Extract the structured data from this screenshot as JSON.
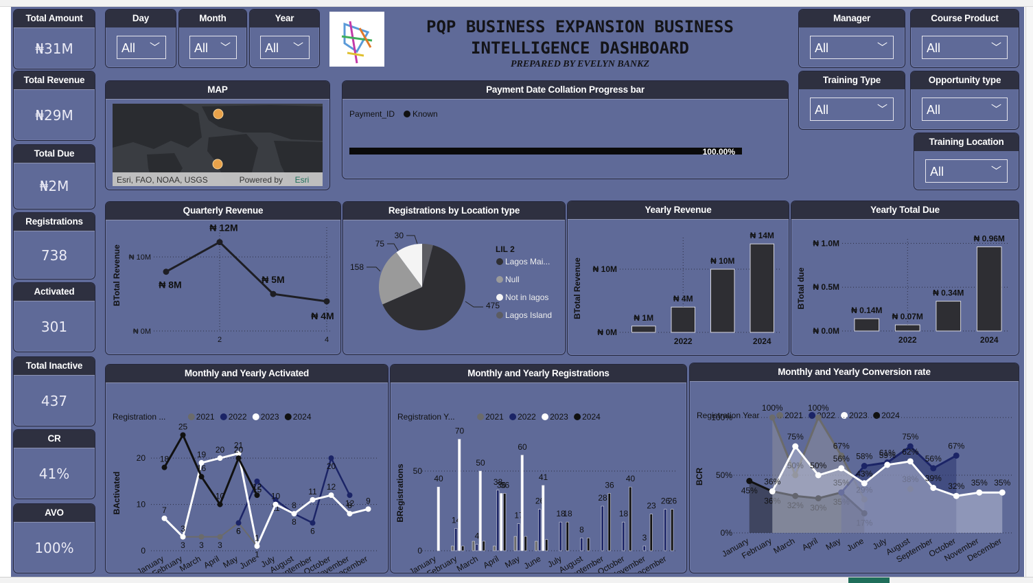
{
  "header": {
    "title_line1": "PQP BUSINESS EXPANSION BUSINESS",
    "title_line2": "INTELLIGENCE DASHBOARD",
    "subtitle": "PREPARED BY EVELYN BANKZ"
  },
  "kpis": [
    {
      "label": "Total Amount",
      "value": "₦31M"
    },
    {
      "label": "Total Revenue",
      "value": "₦29M"
    },
    {
      "label": "Total Due",
      "value": "₦2M"
    },
    {
      "label": "Registrations",
      "value": "738"
    },
    {
      "label": "Activated",
      "value": "301"
    },
    {
      "label": "Total Inactive",
      "value": "437"
    },
    {
      "label": "CR",
      "value": "41%"
    },
    {
      "label": "AVO",
      "value": "100%"
    }
  ],
  "slicers": {
    "day": {
      "label": "Day",
      "value": "All"
    },
    "month": {
      "label": "Month",
      "value": "All"
    },
    "year": {
      "label": "Year",
      "value": "All"
    },
    "manager": {
      "label": "Manager",
      "value": "All"
    },
    "course_product": {
      "label": "Course Product",
      "value": "All"
    },
    "training_type": {
      "label": "Training Type",
      "value": "All"
    },
    "opportunity_type": {
      "label": "Opportunity type",
      "value": "All"
    },
    "training_location": {
      "label": "Training Location",
      "value": "All"
    }
  },
  "map": {
    "title": "MAP",
    "attribution": "Esri, FAO, NOAA, USGS",
    "powered_by": "Powered by",
    "powered_brand": "Esri"
  },
  "progress": {
    "title": "Payment Date Collation Progress bar",
    "legend_field": "Payment_ID",
    "legend_item": "Known",
    "value_label": "100.00%",
    "fraction": 1.0
  },
  "colors": {
    "y2021": "#6b6b6b",
    "y2022": "#1b2466",
    "y2023": "#ffffff",
    "y2024": "#111111",
    "panel_bg": "#5f6a98",
    "header_bg": "#2e3040"
  },
  "charts": {
    "quarterly": {
      "title": "Quarterly Revenue",
      "ylabel": "BTotal Revenue",
      "yticks": [
        "₦ 0M",
        "₦ 10M"
      ],
      "xticks": [
        "2",
        "4"
      ],
      "labels": [
        "₦ 8M",
        "₦ 12M",
        "₦ 5M",
        "₦ 4M"
      ]
    },
    "pie": {
      "title": "Registrations by Location type",
      "legend_title": "LIL 2",
      "legend": [
        "Lagos Mai...",
        "Null",
        "Not in lagos",
        "Lagos Island"
      ],
      "labels": [
        "475",
        "158",
        "75",
        "30"
      ]
    },
    "yearly_rev": {
      "title": "Yearly Revenue",
      "ylabel": "BTotal Revenue",
      "yticks": [
        "₦ 0M",
        "₦ 10M"
      ],
      "xticks": [
        "2022",
        "2024"
      ],
      "labels": [
        "₦ 1M",
        "₦ 4M",
        "₦ 10M",
        "₦ 14M"
      ]
    },
    "yearly_due": {
      "title": "Yearly Total Due",
      "ylabel": "BTotal due",
      "yticks": [
        "₦ 0.0M",
        "₦ 0.5M",
        "₦ 1.0M"
      ],
      "xticks": [
        "2022",
        "2024"
      ],
      "labels": [
        "₦ 0.14M",
        "₦ 0.07M",
        "₦ 0.34M",
        "₦ 0.96M"
      ]
    },
    "activated": {
      "title": "Monthly and Yearly Activated",
      "legend_title": "Registration ...",
      "ylabel": "BActivated",
      "yticks": [
        "0",
        "10",
        "20"
      ]
    },
    "registrations": {
      "title": "Monthly and Yearly Registrations",
      "legend_title": "Registration Y...",
      "ylabel": "BRegistrations",
      "yticks": [
        "0",
        "50"
      ]
    },
    "conversion": {
      "title": "Monthly and Yearly Conversion rate",
      "legend_title": "Registration Year",
      "ylabel": "BCR",
      "yticks": [
        "0%",
        "50%",
        "100%"
      ]
    },
    "years": [
      "2021",
      "2022",
      "2023",
      "2024"
    ],
    "months": [
      "January",
      "February",
      "March",
      "April",
      "May",
      "June",
      "July",
      "August",
      "September",
      "October",
      "November",
      "December"
    ]
  },
  "chart_data": [
    {
      "type": "line",
      "title": "Quarterly Revenue",
      "ylabel": "BTotal Revenue",
      "x": [
        1,
        2,
        3,
        4
      ],
      "values": [
        8,
        12,
        5,
        4
      ],
      "unit": "₦M",
      "ylim": [
        0,
        14
      ]
    },
    {
      "type": "pie",
      "title": "Registrations by Location type",
      "categories": [
        "Lagos Mai...",
        "Null",
        "Not in lagos",
        "Lagos Island"
      ],
      "values": [
        475,
        158,
        75,
        30
      ]
    },
    {
      "type": "bar",
      "title": "Yearly Revenue",
      "ylabel": "BTotal Revenue",
      "categories": [
        "2021",
        "2022",
        "2023",
        "2024"
      ],
      "values": [
        1,
        4,
        10,
        14
      ],
      "unit": "₦M",
      "ylim": [
        0,
        15
      ]
    },
    {
      "type": "bar",
      "title": "Yearly Total Due",
      "ylabel": "BTotal due",
      "categories": [
        "2021",
        "2022",
        "2023",
        "2024"
      ],
      "values": [
        0.14,
        0.07,
        0.34,
        0.96
      ],
      "unit": "₦M",
      "ylim": [
        0,
        1.05
      ]
    },
    {
      "type": "line",
      "title": "Monthly and Yearly Activated",
      "ylabel": "BActivated",
      "categories": [
        "January",
        "February",
        "March",
        "April",
        "May",
        "June",
        "July",
        "August",
        "September",
        "October",
        "November",
        "December"
      ],
      "ylim": [
        0,
        27
      ],
      "series": [
        {
          "name": "2021",
          "values": [
            null,
            3,
            3,
            3,
            6,
            1,
            null,
            null,
            null,
            null,
            null,
            null
          ]
        },
        {
          "name": "2022",
          "values": [
            null,
            null,
            null,
            null,
            6,
            15,
            11,
            8,
            6,
            20,
            12,
            null
          ]
        },
        {
          "name": "2023",
          "values": [
            7,
            3,
            19,
            20,
            21,
            1,
            10,
            8,
            11,
            12,
            8,
            9
          ]
        },
        {
          "name": "2024",
          "values": [
            18,
            25,
            16,
            10,
            20,
            12,
            null,
            null,
            null,
            null,
            null,
            null
          ]
        }
      ]
    },
    {
      "type": "bar",
      "title": "Monthly and Yearly Registrations",
      "ylabel": "BRegistrations",
      "categories": [
        "January",
        "February",
        "March",
        "April",
        "May",
        "June",
        "July",
        "August",
        "September",
        "October",
        "November",
        "December"
      ],
      "ylim": [
        0,
        75
      ],
      "series": [
        {
          "name": "2021",
          "values": [
            null,
            3,
            6,
            3,
            9,
            6,
            null,
            null,
            null,
            null,
            null,
            null
          ]
        },
        {
          "name": "2022",
          "values": [
            null,
            14,
            4,
            38,
            17,
            26,
            18,
            8,
            28,
            18,
            3,
            26
          ]
        },
        {
          "name": "2023",
          "values": [
            40,
            70,
            50,
            36,
            60,
            41,
            null,
            null,
            null,
            null,
            null,
            null
          ]
        },
        {
          "name": "2024",
          "values": [
            null,
            3,
            6,
            36,
            9,
            7,
            18,
            8,
            36,
            40,
            23,
            26
          ]
        }
      ]
    },
    {
      "type": "area",
      "title": "Monthly and Yearly Conversion rate",
      "ylabel": "BCR",
      "categories": [
        "January",
        "February",
        "March",
        "April",
        "May",
        "June",
        "July",
        "August",
        "September",
        "October",
        "November",
        "December"
      ],
      "ylim": [
        0,
        100
      ],
      "unit": "%",
      "series": [
        {
          "name": "2021",
          "values": [
            null,
            100,
            50,
            100,
            67,
            29,
            null,
            38,
            null,
            null,
            null,
            null
          ]
        },
        {
          "name": "2022",
          "values": [
            null,
            null,
            null,
            null,
            35,
            58,
            61,
            75,
            56,
            67,
            null,
            null
          ]
        },
        {
          "name": "2023",
          "values": [
            null,
            36,
            75,
            50,
            56,
            43,
            59,
            62,
            39,
            32,
            35,
            35
          ]
        },
        {
          "name": "2024",
          "values": [
            45,
            36,
            32,
            30,
            35,
            17,
            null,
            null,
            null,
            null,
            null,
            null
          ]
        }
      ]
    }
  ]
}
